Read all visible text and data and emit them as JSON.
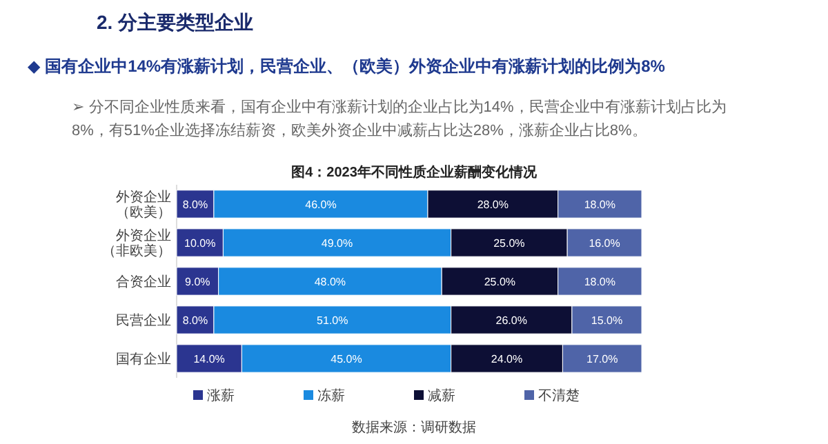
{
  "chart_data": {
    "type": "bar",
    "orientation": "horizontal",
    "stacked": true,
    "title": "图4：2023年不同性质企业薪酬变化情况",
    "annotations": [
      "2. 分主要类型企业",
      "◆ 国有企业中14%有涨薪计划，民营企业、（欧美）外资企业中有涨薪计划的比例为8%",
      "➢ 分不同企业性质来看，国有企业中有涨薪计划的企业占比为14%，民营企业中有涨薪计划占比为8%，有51%企业选择冻结薪资，欧美外资企业中减薪占比达28%，涨薪企业占比8%。",
      "数据来源：调研数据"
    ],
    "categories": [
      "外资企业（欧美）",
      "外资企业（非欧美）",
      "合资企业",
      "民营企业",
      "国有企业"
    ],
    "series": [
      {
        "name": "涨薪",
        "color": "#2b3590",
        "values": [
          8,
          10,
          9,
          8,
          14
        ],
        "value_labels": [
          "8.0%",
          "10.0%",
          "9.0%",
          "8.0%",
          "14.0%"
        ]
      },
      {
        "name": "冻薪",
        "color": "#1a8ae0",
        "values": [
          46,
          49,
          48,
          51,
          45
        ],
        "value_labels": [
          "46.0%",
          "49.0%",
          "48.0%",
          "51.0%",
          "45.0%"
        ]
      },
      {
        "name": "减薪",
        "color": "#0d0f35",
        "values": [
          28,
          25,
          25,
          26,
          24
        ],
        "value_labels": [
          "28.0%",
          "25.0%",
          "25.0%",
          "26.0%",
          "24.0%"
        ]
      },
      {
        "name": "不清楚",
        "color": "#4f64a8",
        "values": [
          18,
          16,
          18,
          15,
          17
        ],
        "value_labels": [
          "18.0%",
          "16.0%",
          "18.0%",
          "15.0%",
          "17.0%"
        ]
      }
    ],
    "legend": "bottom"
  }
}
